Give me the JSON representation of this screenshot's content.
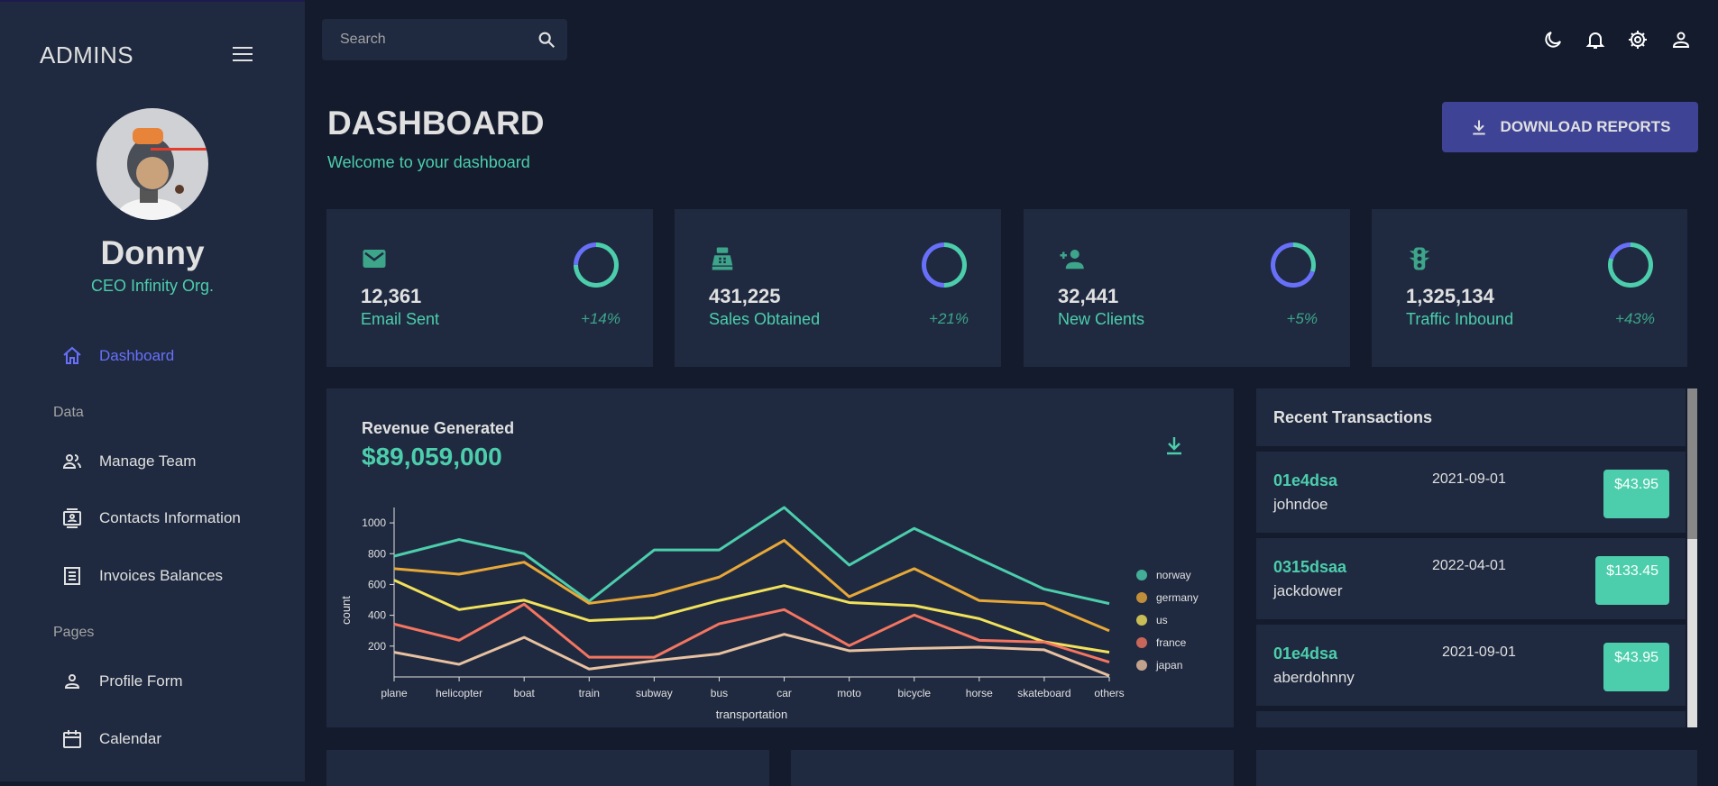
{
  "sidebar": {
    "brand": "ADMINS",
    "user": {
      "name": "Donny",
      "role": "CEO Infinity Org."
    },
    "items": [
      {
        "label": "Dashboard",
        "icon": "home-icon",
        "active": true
      },
      {
        "label": "Manage Team",
        "icon": "team-icon"
      },
      {
        "label": "Contacts Information",
        "icon": "contacts-icon"
      },
      {
        "label": "Invoices Balances",
        "icon": "receipt-icon"
      },
      {
        "label": "Profile Form",
        "icon": "person-icon"
      },
      {
        "label": "Calendar",
        "icon": "calendar-icon"
      }
    ],
    "sections": {
      "data": "Data",
      "pages": "Pages"
    }
  },
  "topbar": {
    "search_placeholder": "Search",
    "icons": [
      "moon-icon",
      "bell-icon",
      "gear-icon",
      "user-icon"
    ]
  },
  "header": {
    "title": "DASHBOARD",
    "subtitle": "Welcome to your dashboard",
    "download_label": "DOWNLOAD REPORTS"
  },
  "stats": [
    {
      "value": "12,361",
      "label": "Email Sent",
      "increase": "+14%",
      "progress": 0.75,
      "icon": "email-icon"
    },
    {
      "value": "431,225",
      "label": "Sales Obtained",
      "increase": "+21%",
      "progress": 0.5,
      "icon": "point-of-sale-icon"
    },
    {
      "value": "32,441",
      "label": "New Clients",
      "increase": "+5%",
      "progress": 0.3,
      "icon": "person-add-icon"
    },
    {
      "value": "1,325,134",
      "label": "Traffic Inbound",
      "increase": "+43%",
      "progress": 0.8,
      "icon": "traffic-icon"
    }
  ],
  "revenue": {
    "title": "Revenue Generated",
    "value": "$89,059,000"
  },
  "transactions": {
    "title": "Recent Transactions",
    "items": [
      {
        "id": "01e4dsa",
        "user": "johndoe",
        "date": "2021-09-01",
        "cost": "$43.95"
      },
      {
        "id": "0315dsaa",
        "user": "jackdower",
        "date": "2022-04-01",
        "cost": "$133.45"
      },
      {
        "id": "01e4dsa",
        "user": "aberdohnny",
        "date": "2021-09-01",
        "cost": "$43.95"
      }
    ]
  },
  "colors": {
    "accent": "#4cceac",
    "primary": "#6870fa",
    "button": "#3e4396"
  },
  "chart_data": {
    "type": "line",
    "xlabel": "transportation",
    "ylabel": "count",
    "ylim": [
      0,
      1100
    ],
    "yticks": [
      200,
      400,
      600,
      800,
      1000
    ],
    "grid": false,
    "legend": "right",
    "categories": [
      "plane",
      "helicopter",
      "boat",
      "train",
      "subway",
      "bus",
      "car",
      "moto",
      "bicycle",
      "horse",
      "skateboard",
      "others"
    ],
    "series": [
      {
        "name": "norway",
        "color": "#4cceac",
        "values": [
          784,
          892,
          800,
          492,
          824,
          824,
          1100,
          726,
          964,
          765,
          570,
          476
        ]
      },
      {
        "name": "germany",
        "color": "#e8a838",
        "values": [
          703,
          667,
          745,
          478,
          531,
          648,
          886,
          521,
          703,
          496,
          476,
          300
        ]
      },
      {
        "name": "us",
        "color": "#f1e15b",
        "values": [
          628,
          437,
          498,
          366,
          384,
          496,
          593,
          483,
          463,
          378,
          228,
          160
        ]
      },
      {
        "name": "france",
        "color": "#f47560",
        "values": [
          343,
          238,
          472,
          128,
          128,
          345,
          437,
          203,
          402,
          238,
          226,
          96
        ]
      },
      {
        "name": "japan",
        "color": "#e8c1a0",
        "values": [
          160,
          82,
          257,
          51,
          105,
          150,
          277,
          170,
          185,
          193,
          176,
          8
        ]
      }
    ]
  }
}
